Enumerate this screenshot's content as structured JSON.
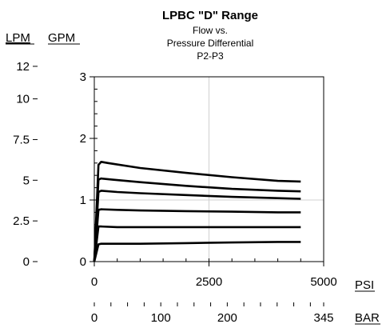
{
  "chart_data": {
    "type": "line",
    "title": "LPBC \"D\" Range",
    "subtitle_lines": [
      "Flow vs.",
      "Pressure Differential",
      "P2-P3"
    ],
    "left_units": [
      "LPM",
      "GPM"
    ],
    "bottom_units": [
      "PSI",
      "BAR"
    ],
    "x_primary": {
      "unit": "PSI",
      "range": [
        0,
        5000
      ],
      "ticks": [
        0,
        2500,
        5000
      ],
      "tick_labels": [
        "0",
        "2500",
        "5000"
      ],
      "minor_step": 500
    },
    "x_secondary": {
      "unit": "BAR",
      "range": [
        0,
        345
      ],
      "tick_labels": [
        "0",
        "100",
        "200",
        "345"
      ],
      "tick_values": [
        0,
        100,
        200,
        345
      ],
      "minor_step": 25
    },
    "y_primary": {
      "unit": "GPM",
      "range": [
        0,
        3
      ],
      "ticks": [
        0,
        1,
        2,
        3
      ],
      "tick_labels": [
        "0",
        "1",
        "2",
        "3"
      ],
      "minor_step": 0.2
    },
    "y_secondary": {
      "unit": "LPM",
      "tick_labels": [
        "12",
        "10",
        "7.5",
        "5",
        "2.5",
        "0"
      ],
      "tick_values": [
        12,
        10,
        7.5,
        5,
        2.5,
        0
      ]
    },
    "grid": {
      "x": [
        2500
      ],
      "y": [
        1
      ]
    },
    "series": [
      {
        "x": [
          0,
          90,
          150,
          300,
          1000,
          2000,
          3000,
          4000,
          4500
        ],
        "values": [
          0,
          1.57,
          1.62,
          1.6,
          1.52,
          1.44,
          1.37,
          1.31,
          1.3
        ]
      },
      {
        "x": [
          0,
          90,
          150,
          400,
          1000,
          2000,
          3000,
          4000,
          4500
        ],
        "values": [
          0,
          1.33,
          1.35,
          1.33,
          1.29,
          1.23,
          1.18,
          1.15,
          1.14
        ]
      },
      {
        "x": [
          0,
          90,
          150,
          500,
          1000,
          2000,
          3000,
          4000,
          4500
        ],
        "values": [
          0,
          1.13,
          1.15,
          1.13,
          1.11,
          1.08,
          1.05,
          1.03,
          1.02
        ]
      },
      {
        "x": [
          0,
          90,
          150,
          500,
          1000,
          2000,
          3000,
          4000,
          4500
        ],
        "values": [
          0,
          0.84,
          0.85,
          0.84,
          0.83,
          0.82,
          0.81,
          0.8,
          0.8
        ]
      },
      {
        "x": [
          0,
          90,
          150,
          500,
          1000,
          2000,
          3000,
          4000,
          4500
        ],
        "values": [
          0,
          0.57,
          0.57,
          0.56,
          0.56,
          0.56,
          0.56,
          0.56,
          0.56
        ]
      },
      {
        "x": [
          0,
          90,
          150,
          500,
          1000,
          2000,
          3000,
          4000,
          4500
        ],
        "values": [
          0,
          0.28,
          0.29,
          0.29,
          0.29,
          0.3,
          0.31,
          0.32,
          0.32
        ]
      }
    ]
  }
}
